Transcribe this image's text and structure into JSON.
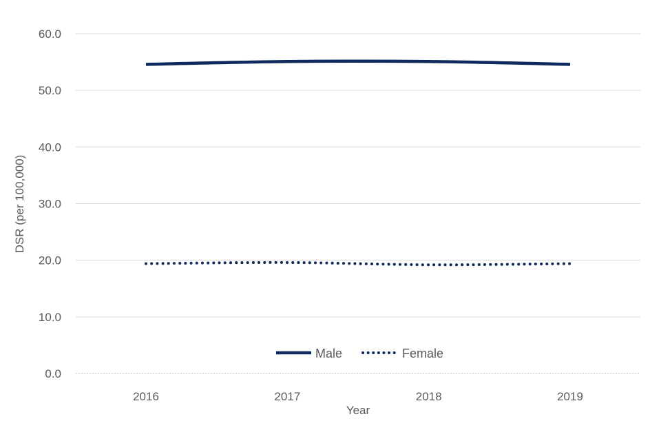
{
  "chart_data": {
    "type": "line",
    "title": "",
    "xlabel": "Year",
    "ylabel": "DSR (per 100,000)",
    "x": [
      "2016",
      "2017",
      "2018",
      "2019"
    ],
    "ylim": [
      0,
      60
    ],
    "yticks": [
      "0.0",
      "10.0",
      "20.0",
      "30.0",
      "40.0",
      "50.0",
      "60.0"
    ],
    "grid": true,
    "legend_position": "bottom-center",
    "series": [
      {
        "name": "Male",
        "values": [
          54.6,
          55.1,
          55.1,
          54.6
        ],
        "style": "solid",
        "color": "#0f2a5c"
      },
      {
        "name": "Female",
        "values": [
          19.4,
          19.6,
          19.2,
          19.4
        ],
        "style": "dotted",
        "color": "#0f2a5c"
      }
    ]
  }
}
